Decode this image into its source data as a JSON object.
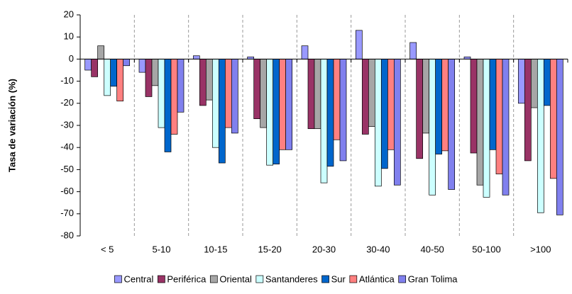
{
  "chart_data": {
    "type": "bar",
    "y_label": "Tasa de variación (%)",
    "categories": [
      "< 5",
      "5-10",
      "10-15",
      "15-20",
      "20-30",
      "30-40",
      "40-50",
      "50-100",
      ">100"
    ],
    "series": [
      {
        "name": "Central",
        "color": "#9999ff",
        "values": [
          -5,
          -6,
          1.5,
          1,
          6,
          13,
          7.5,
          1,
          -20
        ]
      },
      {
        "name": "Periférica",
        "color": "#993366",
        "values": [
          -8,
          -17,
          -21,
          -27,
          -31.5,
          -34,
          -45,
          -42.5,
          -46
        ]
      },
      {
        "name": "Oriental",
        "color": "#a6a6a6",
        "values": [
          6,
          -12,
          -18.5,
          -31,
          -31.5,
          -30.5,
          -33.5,
          -57,
          -22
        ]
      },
      {
        "name": "Santanderes",
        "color": "#ccffff",
        "values": [
          -16.5,
          -31,
          -40,
          -48,
          -56,
          -57.5,
          -61.5,
          -62.5,
          -69.5
        ]
      },
      {
        "name": "Sur",
        "color": "#0066cc",
        "values": [
          -12.3,
          -42,
          -47,
          -47.5,
          -48.5,
          -49.5,
          -43,
          -41,
          -21
        ]
      },
      {
        "name": "Atlántica",
        "color": "#ff8080",
        "values": [
          -19,
          -34,
          -31,
          -41,
          -36.5,
          -41,
          -41.5,
          -52,
          -54
        ]
      },
      {
        "name": "Gran Tolima",
        "color": "#8080ee",
        "values": [
          -3,
          -24,
          -33.5,
          -41,
          -46,
          -57,
          -59,
          -61.5,
          -70.5
        ]
      }
    ],
    "ylim": [
      -80,
      20
    ],
    "yticks": [
      -80,
      -70,
      -60,
      -50,
      -40,
      -30,
      -20,
      -10,
      0,
      10,
      20
    ],
    "category_separators": true,
    "legend": "bottom"
  }
}
